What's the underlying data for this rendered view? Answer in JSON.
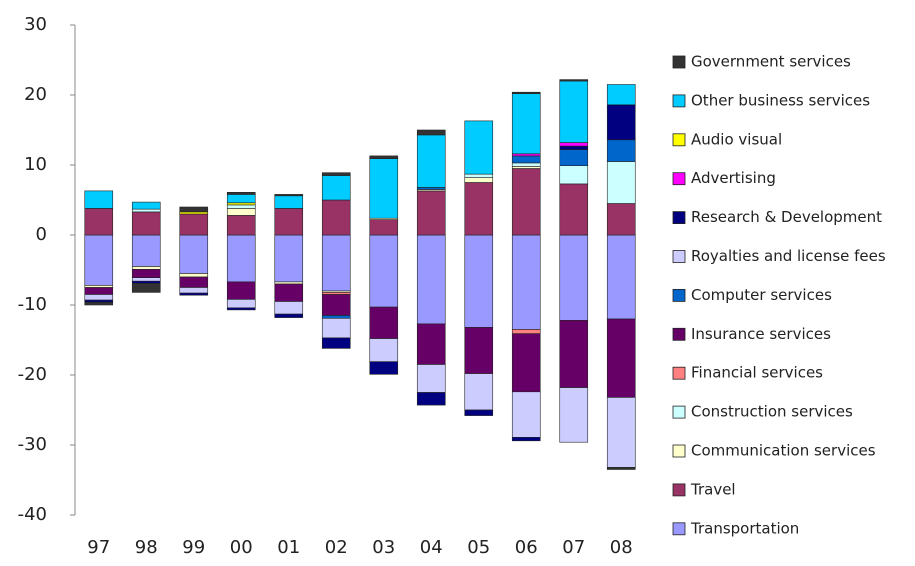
{
  "chart_data": {
    "type": "bar",
    "stacked": true,
    "legend": "right",
    "categories": [
      "97",
      "98",
      "99",
      "00",
      "01",
      "02",
      "03",
      "04",
      "05",
      "06",
      "07",
      "08"
    ],
    "ylim": [
      -40,
      30
    ],
    "yticks": [
      -40,
      -30,
      -20,
      -10,
      0,
      10,
      20,
      30
    ],
    "series": [
      {
        "name": "Transportation",
        "color": "#9999ff",
        "values": [
          -7.2,
          -4.5,
          -5.5,
          -6.7,
          -6.7,
          -8,
          -10.3,
          -12.7,
          -13.2,
          -13.5,
          -12.2,
          -12
        ]
      },
      {
        "name": "Travel",
        "color": "#993366",
        "values": [
          3.8,
          3.3,
          3,
          2.8,
          3.8,
          5,
          2.2,
          6.3,
          7.5,
          9.5,
          7.3,
          4.5
        ]
      },
      {
        "name": "Communication services",
        "color": "#ffffcc",
        "values": [
          -0.3,
          -0.4,
          -0.5,
          1,
          -0.3,
          -0.2,
          0.2,
          0.2,
          0.7,
          0.3,
          0,
          0
        ]
      },
      {
        "name": "Construction services",
        "color": "#ccffff",
        "values": [
          0,
          0.4,
          0,
          0.5,
          0,
          0,
          0,
          0,
          0.5,
          0.5,
          2.6,
          6
        ]
      },
      {
        "name": "Financial services",
        "color": "#ff8080",
        "values": [
          0,
          0,
          0,
          0,
          0,
          -0.3,
          0,
          0,
          0,
          -0.6,
          0,
          0
        ]
      },
      {
        "name": "Insurance services",
        "color": "#660066",
        "values": [
          -1,
          -1.2,
          -1.5,
          -2.5,
          -2.5,
          -3,
          -4.5,
          -5.8,
          -6.6,
          -8.3,
          -9.6,
          -11.2
        ]
      },
      {
        "name": "Computer services",
        "color": "#0066cc",
        "values": [
          0,
          0,
          0,
          0,
          0,
          -0.4,
          0,
          0.3,
          0,
          1,
          2.3,
          3.1
        ]
      },
      {
        "name": "Royalties and license fees",
        "color": "#ccccff",
        "values": [
          -0.8,
          -0.5,
          -0.8,
          -1.2,
          -1.8,
          -2.8,
          -3.3,
          -4,
          -5.2,
          -6.5,
          -7.8,
          -10
        ]
      },
      {
        "name": "Research & Development",
        "color": "#000080",
        "values": [
          -0.3,
          -0.3,
          -0.3,
          -0.3,
          -0.5,
          -1.5,
          -1.8,
          -1.8,
          -0.8,
          -0.5,
          0.5,
          5
        ]
      },
      {
        "name": "Advertising",
        "color": "#ff00ff",
        "values": [
          0,
          0,
          0,
          0,
          0,
          0,
          0,
          0,
          0,
          0.3,
          0.5,
          0
        ]
      },
      {
        "name": "Audio visual",
        "color": "#ffff00",
        "values": [
          0,
          0,
          0.3,
          0.3,
          0,
          0,
          0,
          0,
          0,
          0,
          0,
          0
        ]
      },
      {
        "name": "Other business services",
        "color": "#00ccff",
        "values": [
          2.5,
          1,
          0,
          1.2,
          1.8,
          3.5,
          8.5,
          7.5,
          7.6,
          8.6,
          8.8,
          2.9
        ]
      },
      {
        "name": "Government services",
        "color": "#333333",
        "values": [
          -0.4,
          -1.3,
          0.7,
          0.3,
          0.2,
          0.4,
          0.4,
          0.7,
          0,
          0.2,
          0.2,
          -0.3
        ]
      }
    ]
  }
}
